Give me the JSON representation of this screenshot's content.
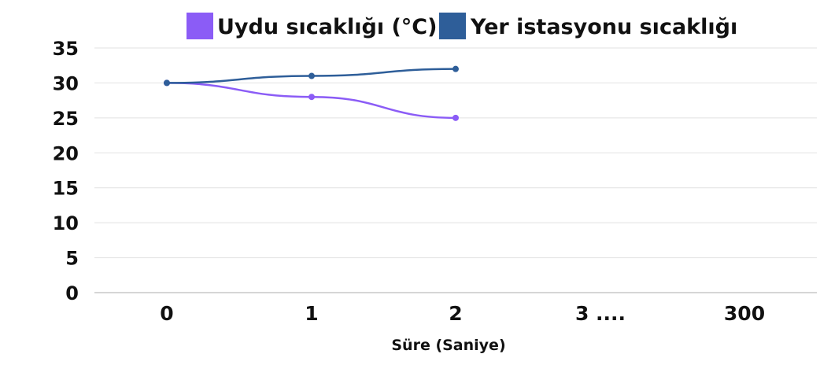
{
  "chart_data": {
    "type": "line",
    "categories": [
      "0",
      "1",
      "2",
      "3 ....",
      "300"
    ],
    "series": [
      {
        "name": "Uydu sıcaklığı (°C)",
        "color": "#8b5cf6",
        "values": [
          30,
          28,
          25,
          null,
          null
        ]
      },
      {
        "name": "Yer istasyonu sıcaklığı",
        "color": "#2e5e99",
        "values": [
          30,
          31,
          32,
          null,
          null
        ]
      }
    ],
    "title": "",
    "xlabel": "Süre (Saniye)",
    "ylabel": "",
    "ylim": [
      0,
      35
    ],
    "yticks": [
      0,
      5,
      10,
      15,
      20,
      25,
      30,
      35
    ],
    "grid": true,
    "legend_position": "top",
    "gridline_color": "#e2e2e2",
    "axis_color": "#c8c8c8"
  }
}
